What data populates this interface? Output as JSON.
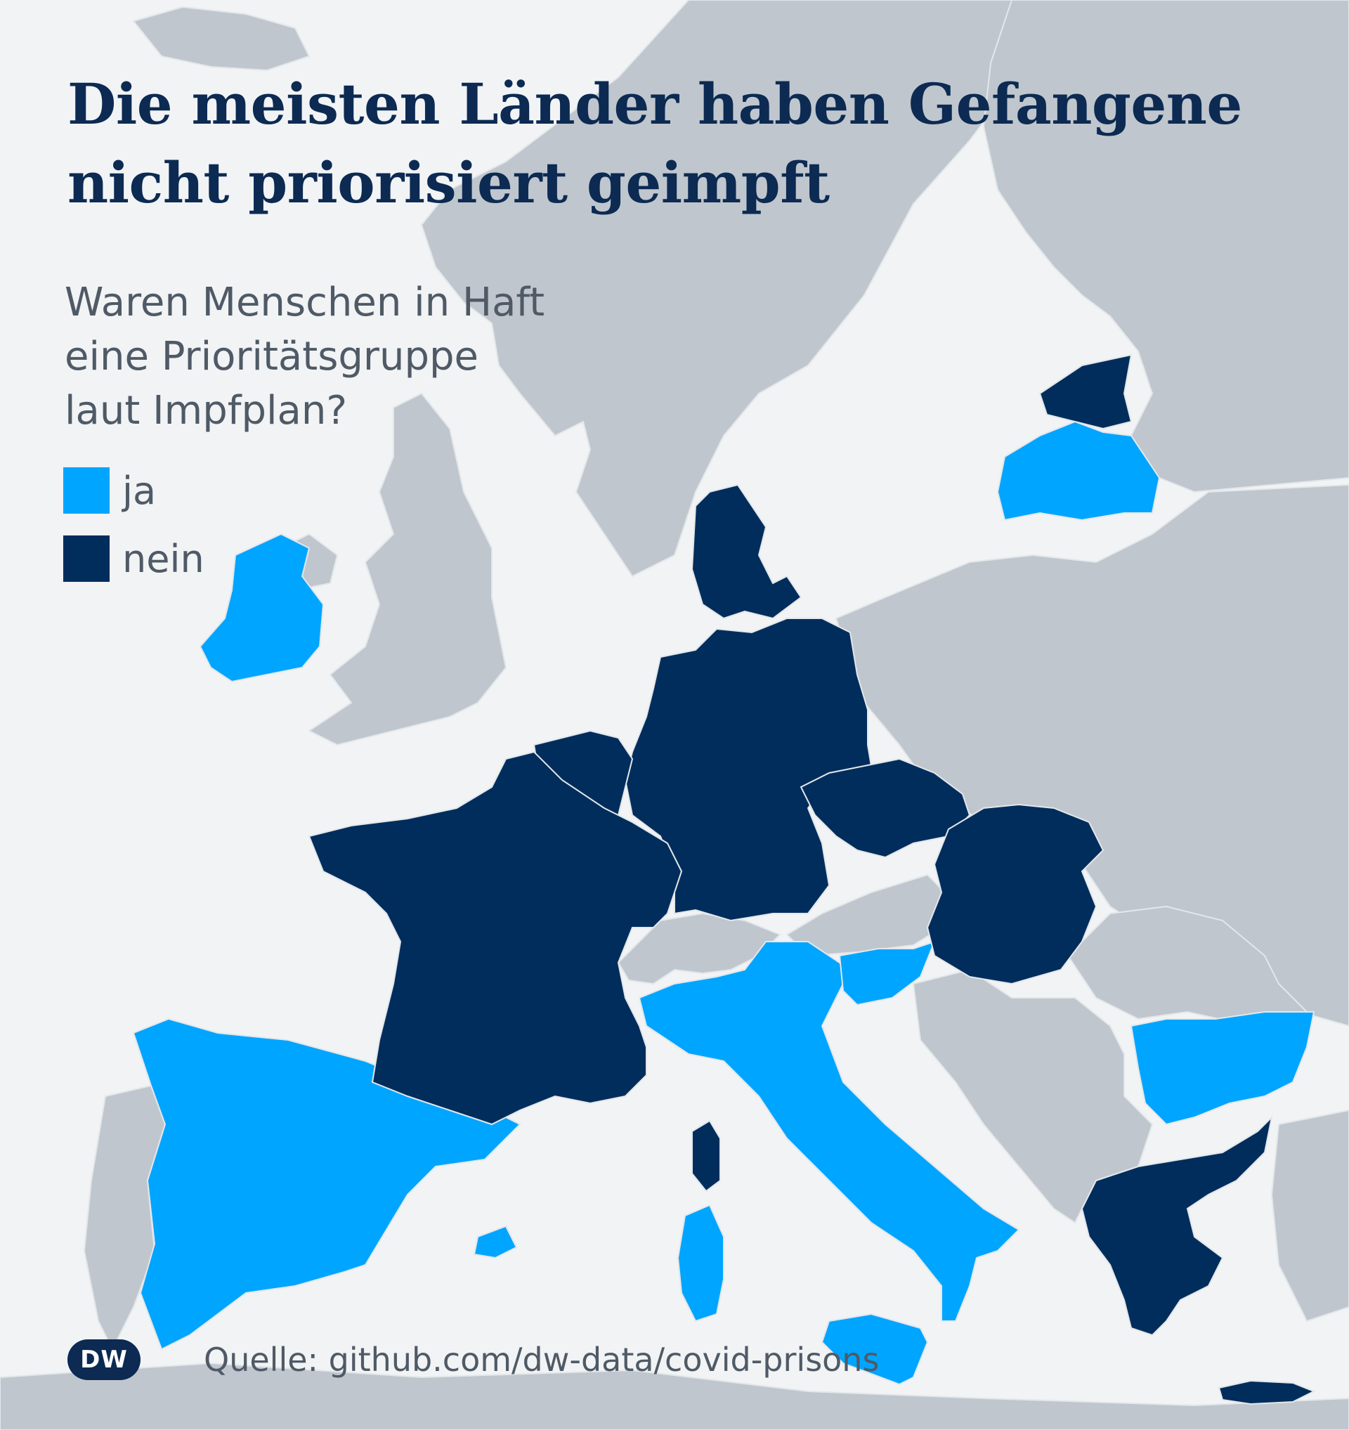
{
  "title": {
    "line1": "Die meisten Länder haben Gefangene",
    "line2": "nicht priorisiert geimpft"
  },
  "subtitle": {
    "line1": "Waren Menschen in Haft",
    "line2": "eine Prioritätsgruppe",
    "line3": "laut Impfplan?"
  },
  "legend": [
    {
      "label": "ja",
      "color": "#00a5ff"
    },
    {
      "label": "nein",
      "color": "#002d5c"
    }
  ],
  "colors": {
    "background": "#f1f3f5",
    "land_other": "#bfc6cd",
    "ja": "#00a5ff",
    "nein": "#002d5c",
    "title": "#0c2a52",
    "text": "#4f5a66"
  },
  "map_data": {
    "ja": [
      "Irland",
      "Spanien",
      "Italien",
      "Slowenien",
      "Bulgarien",
      "Lettland",
      "Malta"
    ],
    "nein": [
      "Frankreich",
      "Deutschland",
      "Belgien",
      "Niederlande",
      "Luxemburg",
      "Dänemark",
      "Tschechien",
      "Slowakei",
      "Ungarn",
      "Griechenland",
      "Estland",
      "Zypern"
    ],
    "no_data": [
      "Vereinigtes Königreich",
      "Portugal",
      "Schweiz",
      "Österreich",
      "Polen",
      "Litauen",
      "Schweden",
      "Norwegen",
      "Finnland",
      "Rumänien",
      "Kroatien",
      "Serbien",
      "Bosnien und Herzegowina",
      "Montenegro",
      "Albanien",
      "Nordmazedonien",
      "Belarus",
      "Ukraine",
      "Moldau",
      "Türkei"
    ]
  },
  "footer": {
    "logo": "DW",
    "source": "Quelle: github.com/dw-data/covid-prisons"
  }
}
